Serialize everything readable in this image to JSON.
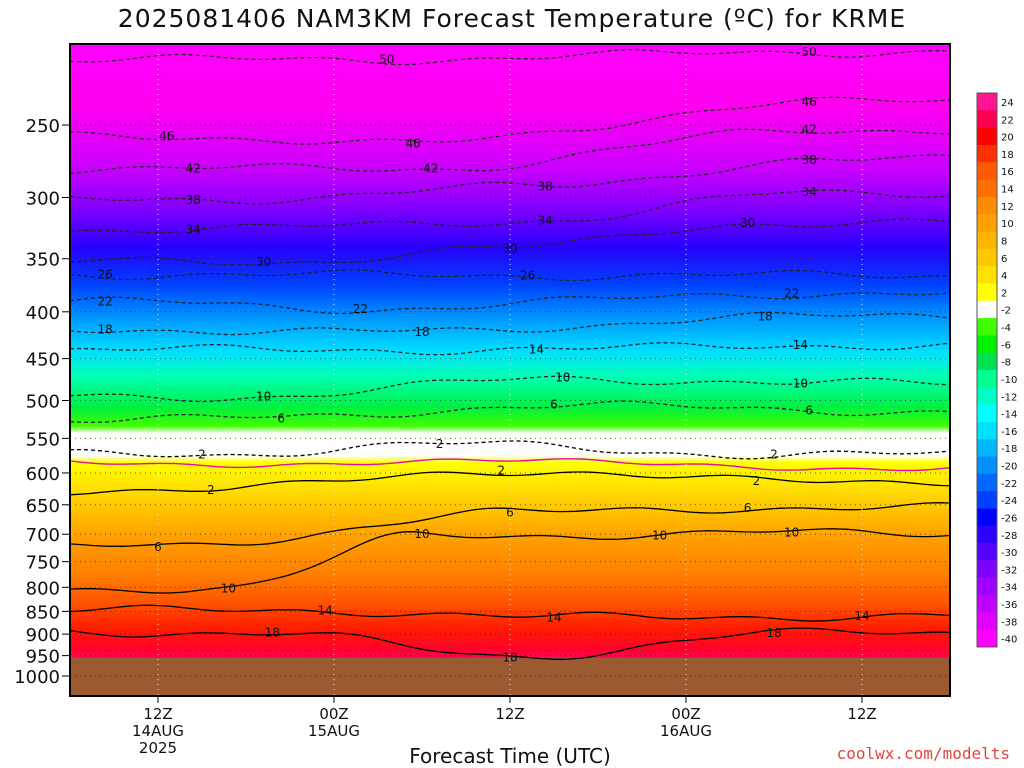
{
  "header": {
    "title": "2025081406 NAM3KM Forecast Temperature (ºC) for KRME"
  },
  "footer": {
    "xlabel": "Forecast Time (UTC)",
    "credit": "coolwx.com/modelts"
  },
  "chart_data": {
    "type": "heatmap",
    "title": "2025081406 NAM3KM Forecast Temperature (ºC) for KRME",
    "xlabel": "Forecast Time (UTC)",
    "ylabel": "",
    "y_scale": "log (pressure, inverted)",
    "y_ticks": [
      250,
      300,
      350,
      400,
      450,
      500,
      550,
      600,
      650,
      700,
      750,
      800,
      850,
      900,
      950,
      1000
    ],
    "x_ticks": [
      {
        "lines": [
          "12Z",
          "14AUG",
          "2025"
        ]
      },
      {
        "lines": [
          "00Z",
          "15AUG"
        ]
      },
      {
        "lines": [
          "12Z"
        ]
      },
      {
        "lines": [
          "00Z",
          "16AUG"
        ]
      },
      {
        "lines": [
          "12Z"
        ]
      }
    ],
    "grid": true,
    "colorbar": {
      "labels": [
        "24",
        "22",
        "20",
        "18",
        "16",
        "14",
        "12",
        "10",
        "8",
        "6",
        "4",
        "2",
        "-2",
        "-4",
        "-6",
        "-8",
        "-10",
        "-12",
        "-14",
        "-16",
        "-18",
        "-20",
        "-22",
        "-24",
        "-26",
        "-28",
        "-30",
        "-32",
        "-34",
        "-36",
        "-38",
        "-40"
      ],
      "colors": [
        "#ff1493",
        "#ff0050",
        "#ff0000",
        "#ff3000",
        "#ff5a00",
        "#ff7000",
        "#ff8c00",
        "#ffa000",
        "#ffb400",
        "#ffc800",
        "#ffe000",
        "#ffff00",
        "#ffffff",
        "#40ff00",
        "#00f000",
        "#00e050",
        "#00ff90",
        "#00ffc8",
        "#00ffff",
        "#00e0ff",
        "#00b8ff",
        "#0090ff",
        "#0068ff",
        "#0040ff",
        "#0000ff",
        "#3000ff",
        "#5800ff",
        "#8000ff",
        "#a000ff",
        "#c000ff",
        "#e000ff",
        "#ff00ff"
      ]
    },
    "contour_labels": [
      {
        "value": -50,
        "text": "50",
        "time": 0.36,
        "p": 212
      },
      {
        "value": -50,
        "text": "50",
        "time": 0.84,
        "p": 208
      },
      {
        "value": -46,
        "text": "46",
        "time": 0.11,
        "p": 257
      },
      {
        "value": -46,
        "text": "46",
        "time": 0.39,
        "p": 262
      },
      {
        "value": -46,
        "text": "46",
        "time": 0.84,
        "p": 236
      },
      {
        "value": -42,
        "text": "42",
        "time": 0.14,
        "p": 279
      },
      {
        "value": -42,
        "text": "42",
        "time": 0.41,
        "p": 279
      },
      {
        "value": -42,
        "text": "42",
        "time": 0.84,
        "p": 253
      },
      {
        "value": -38,
        "text": "38",
        "time": 0.14,
        "p": 302
      },
      {
        "value": -38,
        "text": "38",
        "time": 0.54,
        "p": 292
      },
      {
        "value": -38,
        "text": "38",
        "time": 0.84,
        "p": 273
      },
      {
        "value": -34,
        "text": "34",
        "time": 0.14,
        "p": 325
      },
      {
        "value": -34,
        "text": "34",
        "time": 0.54,
        "p": 318
      },
      {
        "value": -34,
        "text": "34",
        "time": 0.84,
        "p": 296
      },
      {
        "value": -30,
        "text": "30",
        "time": 0.22,
        "p": 353
      },
      {
        "value": -30,
        "text": "30",
        "time": 0.5,
        "p": 341
      },
      {
        "value": -30,
        "text": "30",
        "time": 0.77,
        "p": 320
      },
      {
        "value": -26,
        "text": "26",
        "time": 0.04,
        "p": 364
      },
      {
        "value": -26,
        "text": "26",
        "time": 0.52,
        "p": 365
      },
      {
        "value": -22,
        "text": "22",
        "time": 0.04,
        "p": 390
      },
      {
        "value": -22,
        "text": "22",
        "time": 0.33,
        "p": 397
      },
      {
        "value": -22,
        "text": "22",
        "time": 0.82,
        "p": 382
      },
      {
        "value": -18,
        "text": "18",
        "time": 0.04,
        "p": 418
      },
      {
        "value": -18,
        "text": "18",
        "time": 0.4,
        "p": 421
      },
      {
        "value": -18,
        "text": "18",
        "time": 0.79,
        "p": 405
      },
      {
        "value": -14,
        "text": "14",
        "time": 0.53,
        "p": 440
      },
      {
        "value": -14,
        "text": "14",
        "time": 0.83,
        "p": 435
      },
      {
        "value": -10,
        "text": "10",
        "time": 0.22,
        "p": 495
      },
      {
        "value": -10,
        "text": "10",
        "time": 0.56,
        "p": 472
      },
      {
        "value": -10,
        "text": "10",
        "time": 0.83,
        "p": 479
      },
      {
        "value": -6,
        "text": "6",
        "time": 0.24,
        "p": 523
      },
      {
        "value": -6,
        "text": "6",
        "time": 0.55,
        "p": 505
      },
      {
        "value": -6,
        "text": "6",
        "time": 0.84,
        "p": 513
      },
      {
        "value": -2,
        "text": "2",
        "time": 0.15,
        "p": 573
      },
      {
        "value": -2,
        "text": "2",
        "time": 0.42,
        "p": 558
      },
      {
        "value": -2,
        "text": "2",
        "time": 0.8,
        "p": 573
      },
      {
        "value": 2,
        "text": "2",
        "time": 0.16,
        "p": 626
      },
      {
        "value": 2,
        "text": "2",
        "time": 0.49,
        "p": 596
      },
      {
        "value": 2,
        "text": "2",
        "time": 0.78,
        "p": 612
      },
      {
        "value": 6,
        "text": "6",
        "time": 0.1,
        "p": 723
      },
      {
        "value": 6,
        "text": "6",
        "time": 0.5,
        "p": 663
      },
      {
        "value": 6,
        "text": "6",
        "time": 0.77,
        "p": 655
      },
      {
        "value": 10,
        "text": "10",
        "time": 0.18,
        "p": 802
      },
      {
        "value": 10,
        "text": "10",
        "time": 0.4,
        "p": 700
      },
      {
        "value": 10,
        "text": "10",
        "time": 0.67,
        "p": 702
      },
      {
        "value": 10,
        "text": "10",
        "time": 0.82,
        "p": 697
      },
      {
        "value": 14,
        "text": "14",
        "time": 0.29,
        "p": 848
      },
      {
        "value": 14,
        "text": "14",
        "time": 0.55,
        "p": 863
      },
      {
        "value": 14,
        "text": "14",
        "time": 0.9,
        "p": 860
      },
      {
        "value": 18,
        "text": "18",
        "time": 0.23,
        "p": 896
      },
      {
        "value": 18,
        "text": "18",
        "time": 0.5,
        "p": 954
      },
      {
        "value": 18,
        "text": "18",
        "time": 0.8,
        "p": 898
      }
    ]
  }
}
